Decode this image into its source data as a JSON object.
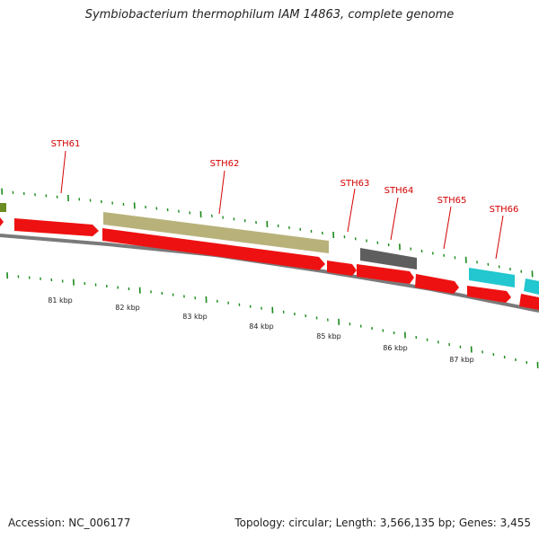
{
  "header": {
    "title": "Symbiobacterium thermophilum IAM 14863, complete genome"
  },
  "footer": {
    "accession": "Accession: NC_006177",
    "summary": "Topology: circular; Length: 3,566,135 bp; Genes: 3,455"
  },
  "colors": {
    "forward_cds": "#ee1111",
    "reverse_olive": "#b8b27a",
    "reverse_dark": "#5e5e5e",
    "reverse_cyan": "#22c7cf",
    "reverse_green": "#6b8c22",
    "ticks": "#1a8a1a",
    "backbone": "#7a7a7a",
    "label": "#d40000"
  },
  "gene_labels": [
    "STH61",
    "STH62",
    "STH63",
    "STH64",
    "STH65",
    "STH66"
  ],
  "scale_labels": [
    "81 kbp",
    "82 kbp",
    "83 kbp",
    "84 kbp",
    "85 kbp",
    "86 kbp",
    "87 kbp"
  ],
  "features": [
    {
      "strand": "reverse",
      "color": "reverse_green",
      "label": ""
    },
    {
      "strand": "forward",
      "color": "forward_cds",
      "label": ""
    },
    {
      "strand": "forward",
      "color": "forward_cds",
      "label": "STH61"
    },
    {
      "strand": "reverse",
      "color": "reverse_olive",
      "label": "STH62"
    },
    {
      "strand": "forward",
      "color": "forward_cds",
      "label": "STH62"
    },
    {
      "strand": "forward",
      "color": "forward_cds",
      "label": "STH63"
    },
    {
      "strand": "reverse",
      "color": "reverse_dark",
      "label": "STH64"
    },
    {
      "strand": "forward",
      "color": "forward_cds",
      "label": "STH64"
    },
    {
      "strand": "forward",
      "color": "forward_cds",
      "label": "STH65"
    },
    {
      "strand": "reverse",
      "color": "reverse_cyan",
      "label": "STH66"
    },
    {
      "strand": "forward",
      "color": "forward_cds",
      "label": "STH66"
    },
    {
      "strand": "reverse",
      "color": "reverse_cyan",
      "label": ""
    },
    {
      "strand": "forward",
      "color": "forward_cds",
      "label": ""
    }
  ]
}
